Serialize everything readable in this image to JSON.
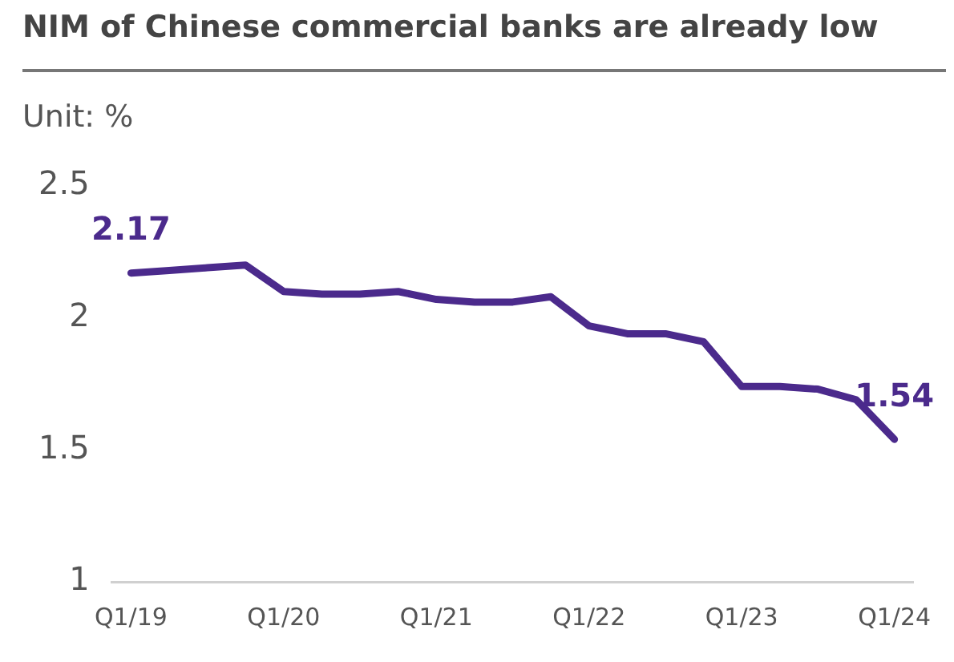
{
  "chart_data": {
    "type": "line",
    "title": "NIM of Chinese commercial banks are already low",
    "ylabel": "Unit: %",
    "categories": [
      "Q1/19",
      null,
      null,
      null,
      "Q1/20",
      null,
      null,
      null,
      "Q1/21",
      null,
      null,
      null,
      "Q1/22",
      null,
      null,
      null,
      "Q1/23",
      null,
      null,
      null,
      "Q1/24"
    ],
    "series": [
      {
        "color": "#4b2a8c",
        "values": [
          2.17,
          2.18,
          2.19,
          2.2,
          2.1,
          2.09,
          2.09,
          2.1,
          2.07,
          2.06,
          2.06,
          2.08,
          1.97,
          1.94,
          1.94,
          1.91,
          1.74,
          1.74,
          1.73,
          1.69,
          1.54
        ],
        "value_labels": [
          "2.17",
          null,
          null,
          null,
          null,
          null,
          null,
          null,
          null,
          null,
          null,
          null,
          null,
          null,
          null,
          null,
          null,
          null,
          null,
          null,
          "1.54"
        ]
      }
    ],
    "ylim": [
      1,
      2.5
    ],
    "yticks": [
      1,
      1.5,
      2,
      2.5
    ],
    "grid": false,
    "legend": false,
    "marker": "none",
    "line_style": "solid"
  }
}
